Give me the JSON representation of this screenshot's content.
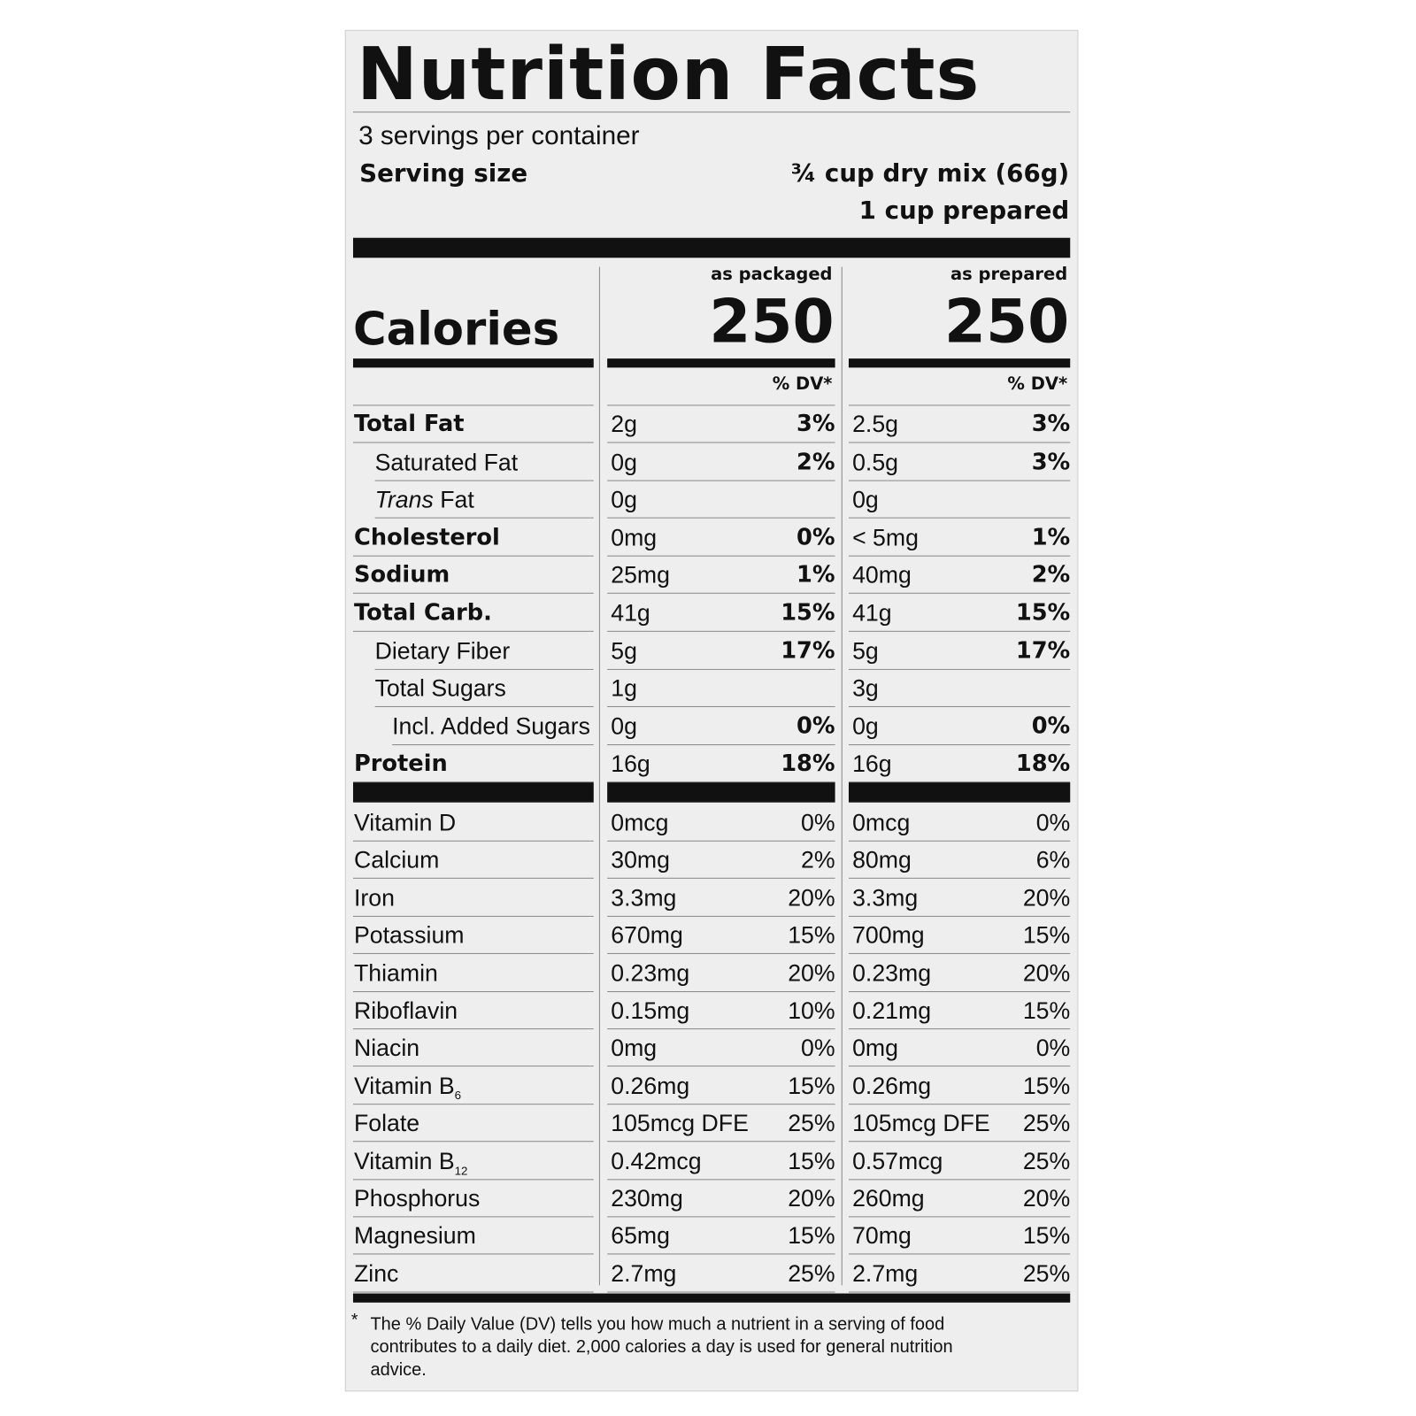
{
  "title": "Nutrition Facts",
  "servings": "3 servings per container",
  "serving_size": {
    "label": "Serving size",
    "packaged": "¾ cup dry mix (66g)",
    "prepared": "1 cup prepared"
  },
  "columns": [
    "as packaged",
    "as prepared"
  ],
  "calories": {
    "label": "Calories",
    "values": [
      "250",
      "250"
    ]
  },
  "dv_header": [
    "% DV*",
    "% DV*"
  ],
  "nutrients": [
    {
      "name": "Total Fat",
      "style": "bold",
      "packaged": [
        "2g",
        "3%"
      ],
      "prepared": [
        "2.5g",
        "3%"
      ]
    },
    {
      "name": "Saturated Fat",
      "style": "indent",
      "packaged": [
        "0g",
        "2%"
      ],
      "prepared": [
        "0.5g",
        "3%"
      ]
    },
    {
      "name_italic": "Trans",
      "name": "Fat",
      "style": "indent",
      "packaged": [
        "0g"
      ],
      "prepared": [
        "0g"
      ]
    },
    {
      "name": "Cholesterol",
      "style": "bold",
      "packaged": [
        "0mg",
        "0%"
      ],
      "prepared": [
        "< 5mg",
        "1%"
      ]
    },
    {
      "name": "Sodium",
      "style": "bold",
      "packaged": [
        "25mg",
        "1%"
      ],
      "prepared": [
        "40mg",
        "2%"
      ]
    },
    {
      "name": "Total Carb.",
      "style": "bold",
      "packaged": [
        "41g",
        "15%"
      ],
      "prepared": [
        "41g",
        "15%"
      ]
    },
    {
      "name": "Dietary Fiber",
      "style": "indent",
      "packaged": [
        "5g",
        "17%"
      ],
      "prepared": [
        "5g",
        "17%"
      ]
    },
    {
      "name": "Total Sugars",
      "style": "indent",
      "packaged": [
        "1g"
      ],
      "prepared": [
        "3g"
      ]
    },
    {
      "name": "Incl. Added Sugars",
      "style": "indent2",
      "packaged": [
        "0g",
        "0%"
      ],
      "prepared": [
        "0g",
        "0%"
      ]
    },
    {
      "name": "Protein",
      "style": "bold",
      "packaged": [
        "16g",
        "18%"
      ],
      "prepared": [
        "16g",
        "18%"
      ]
    }
  ],
  "vitamins": [
    {
      "name": "Vitamin D",
      "packaged": [
        "0mcg",
        "0%"
      ],
      "prepared": [
        "0mcg",
        "0%"
      ]
    },
    {
      "name": "Calcium",
      "packaged": [
        "30mg",
        "2%"
      ],
      "prepared": [
        "80mg",
        "6%"
      ]
    },
    {
      "name": "Iron",
      "packaged": [
        "3.3mg",
        "20%"
      ],
      "prepared": [
        "3.3mg",
        "20%"
      ]
    },
    {
      "name": "Potassium",
      "packaged": [
        "670mg",
        "15%"
      ],
      "prepared": [
        "700mg",
        "15%"
      ]
    },
    {
      "name": "Thiamin",
      "packaged": [
        "0.23mg",
        "20%"
      ],
      "prepared": [
        "0.23mg",
        "20%"
      ]
    },
    {
      "name": "Riboflavin",
      "packaged": [
        "0.15mg",
        "10%"
      ],
      "prepared": [
        "0.21mg",
        "15%"
      ]
    },
    {
      "name": "Niacin",
      "packaged": [
        "0mg",
        "0%"
      ],
      "prepared": [
        "0mg",
        "0%"
      ]
    },
    {
      "name": "Vitamin B",
      "sub": "6",
      "packaged": [
        "0.26mg",
        "15%"
      ],
      "prepared": [
        "0.26mg",
        "15%"
      ]
    },
    {
      "name": "Folate",
      "packaged": [
        "105mcg DFE",
        "25%"
      ],
      "prepared": [
        "105mcg DFE",
        "25%"
      ]
    },
    {
      "name": "Vitamin B",
      "sub": "12",
      "packaged": [
        "0.42mcg",
        "15%"
      ],
      "prepared": [
        "0.57mcg",
        "25%"
      ]
    },
    {
      "name": "Phosphorus",
      "packaged": [
        "230mg",
        "20%"
      ],
      "prepared": [
        "260mg",
        "20%"
      ]
    },
    {
      "name": "Magnesium",
      "packaged": [
        "65mg",
        "15%"
      ],
      "prepared": [
        "70mg",
        "15%"
      ]
    },
    {
      "name": "Zinc",
      "packaged": [
        "2.7mg",
        "25%"
      ],
      "prepared": [
        "2.7mg",
        "25%"
      ]
    }
  ],
  "footnote": {
    "mark": "*",
    "text": "The % Daily Value (DV) tells you how much a nutrient in a serving of food contributes to a daily diet. 2,000 calories a day is used for general nutrition advice."
  }
}
